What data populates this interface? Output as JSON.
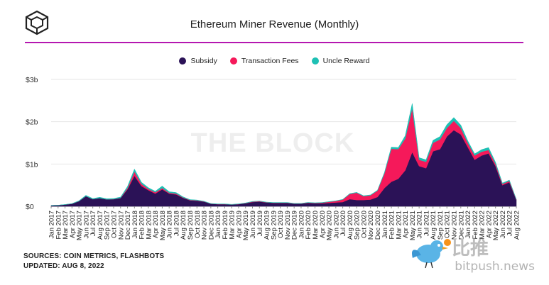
{
  "header": {
    "title": "Ethereum Miner Revenue (Monthly)"
  },
  "brand": {
    "logo": "the-block-cube-logo",
    "watermark": "THE BLOCK"
  },
  "footer": {
    "sources": "SOURCES: COIN METRICS, FLASHBOTS",
    "updated": "UPDATED: AUG 8, 2022"
  },
  "overlay_watermark": {
    "cn": "比推",
    "url": "bitpush.news"
  },
  "colors": {
    "subsidy": "#2b1257",
    "fees": "#f5195a",
    "uncle": "#1ec0b4",
    "accent_rule": "#b517b0",
    "grid": "#e6e6e6"
  },
  "chart_data": {
    "type": "area",
    "stacked": true,
    "title": "Ethereum Miner Revenue (Monthly)",
    "xlabel": "",
    "ylabel": "",
    "ylim": [
      0,
      3000000000
    ],
    "yticks": [
      0,
      1000000000,
      2000000000,
      3000000000
    ],
    "ytick_labels": [
      "$0",
      "$1b",
      "$2b",
      "$3b"
    ],
    "grid": true,
    "legend": "top-center",
    "categories": [
      "Jan 2017",
      "Feb 2017",
      "Mar 2017",
      "Apr 2017",
      "May 2017",
      "Jun 2017",
      "Jul 2017",
      "Aug 2017",
      "Sep 2017",
      "Oct 2017",
      "Nov 2017",
      "Dec 2017",
      "Jan 2018",
      "Feb 2018",
      "Mar 2018",
      "Apr 2018",
      "May 2018",
      "Jun 2018",
      "Jul 2018",
      "Aug 2018",
      "Sep 2018",
      "Oct 2018",
      "Nov 2018",
      "Dec 2018",
      "Jan 2019",
      "Feb 2019",
      "Mar 2019",
      "Apr 2019",
      "May 2019",
      "Jun 2019",
      "Jul 2019",
      "Aug 2019",
      "Sep 2019",
      "Oct 2019",
      "Nov 2019",
      "Dec 2019",
      "Jan 2020",
      "Feb 2020",
      "Mar 2020",
      "Apr 2020",
      "May 2020",
      "Jun 2020",
      "Jul 2020",
      "Aug 2020",
      "Sep 2020",
      "Oct 2020",
      "Nov 2020",
      "Dec 2020",
      "Jan 2021",
      "Feb 2021",
      "Mar 2021",
      "Apr 2021",
      "May 2021",
      "Jun 2021",
      "Jul 2021",
      "Aug 2021",
      "Sep 2021",
      "Oct 2021",
      "Nov 2021",
      "Dec 2021",
      "Jan 2022",
      "Feb 2022",
      "Mar 2022",
      "Apr 2022",
      "May 2022",
      "Jun 2022",
      "Jul 2022",
      "Aug 2022"
    ],
    "series": [
      {
        "name": "Subsidy",
        "color": "#2b1257",
        "values": [
          20,
          25,
          40,
          60,
          120,
          240,
          170,
          195,
          165,
          170,
          195,
          400,
          720,
          480,
          380,
          300,
          400,
          300,
          280,
          200,
          140,
          130,
          110,
          60,
          50,
          50,
          40,
          50,
          70,
          100,
          110,
          90,
          80,
          80,
          80,
          60,
          60,
          80,
          70,
          70,
          80,
          90,
          100,
          170,
          150,
          150,
          160,
          220,
          430,
          580,
          650,
          850,
          1280,
          950,
          900,
          1300,
          1350,
          1650,
          1800,
          1700,
          1400,
          1100,
          1200,
          1250,
          950,
          500,
          570,
          150
        ]
      },
      {
        "name": "Transaction Fees",
        "color": "#f5195a",
        "values": [
          0,
          0,
          0,
          0,
          0,
          0,
          0,
          0,
          0,
          0,
          5,
          30,
          100,
          50,
          30,
          30,
          30,
          20,
          20,
          10,
          10,
          10,
          5,
          2,
          2,
          2,
          2,
          3,
          5,
          10,
          10,
          5,
          5,
          5,
          5,
          5,
          5,
          8,
          8,
          15,
          25,
          35,
          60,
          120,
          170,
          90,
          100,
          150,
          350,
          780,
          700,
          750,
          1030,
          150,
          150,
          200,
          230,
          200,
          220,
          150,
          100,
          100,
          90,
          80,
          50,
          30,
          30,
          10
        ]
      },
      {
        "name": "Uncle Reward",
        "color": "#1ec0b4",
        "values": [
          2,
          2,
          3,
          5,
          10,
          20,
          15,
          20,
          15,
          15,
          20,
          40,
          60,
          40,
          30,
          25,
          50,
          25,
          25,
          15,
          10,
          10,
          5,
          5,
          5,
          5,
          5,
          5,
          5,
          5,
          5,
          5,
          5,
          5,
          5,
          5,
          5,
          5,
          5,
          5,
          5,
          5,
          5,
          10,
          10,
          10,
          10,
          10,
          20,
          40,
          40,
          70,
          120,
          50,
          50,
          60,
          70,
          80,
          80,
          70,
          50,
          40,
          50,
          60,
          40,
          20,
          20,
          5
        ]
      }
    ],
    "value_unit": "USD millions"
  }
}
